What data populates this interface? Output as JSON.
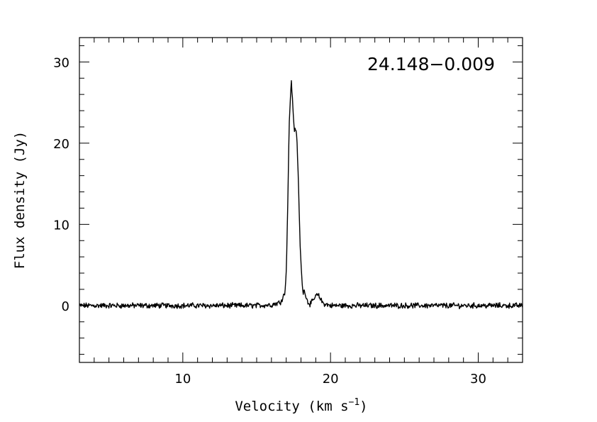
{
  "chart_data": {
    "type": "line",
    "annotation": "24.148−0.009",
    "xlabel_main": "Velocity (km s",
    "xlabel_sup": "−1",
    "xlabel_end": ")",
    "ylabel": "Flux density (Jy)",
    "xlim": [
      3,
      33
    ],
    "ylim": [
      -7,
      33
    ],
    "x_major_ticks": [
      10,
      20,
      30
    ],
    "x_tick_labels": [
      "10",
      "20",
      "30"
    ],
    "x_minor_step": 1,
    "y_major_ticks": [
      0,
      10,
      20,
      30
    ],
    "y_tick_labels": [
      "0",
      "10",
      "20",
      "30"
    ],
    "y_minor_step": 2,
    "grid": false,
    "series": [
      {
        "name": "",
        "line_color": "#000000",
        "x": [
          3.0,
          4.0,
          5.0,
          6.0,
          7.0,
          8.0,
          9.0,
          10.0,
          11.0,
          12.0,
          13.0,
          14.0,
          15.0,
          16.0,
          16.6,
          16.9,
          17.0,
          17.1,
          17.2,
          17.3,
          17.35,
          17.45,
          17.55,
          17.65,
          17.75,
          17.85,
          17.95,
          18.05,
          18.15,
          18.25,
          18.35,
          18.45,
          18.6,
          18.8,
          19.0,
          19.15,
          19.3,
          19.45,
          19.6,
          19.8,
          20.0,
          21.0,
          22.0,
          23.0,
          24.0,
          25.0,
          26.0,
          27.0,
          28.0,
          29.0,
          30.0,
          31.0,
          32.0,
          33.0
        ],
        "y": [
          0.0,
          0.0,
          0.0,
          0.0,
          0.0,
          0.0,
          0.0,
          0.0,
          0.0,
          0.0,
          0.0,
          0.0,
          0.0,
          0.1,
          0.4,
          1.5,
          4.0,
          12.0,
          22.0,
          26.5,
          27.5,
          24.5,
          21.5,
          22.0,
          19.5,
          13.5,
          7.0,
          3.5,
          1.5,
          2.0,
          1.0,
          0.5,
          0.2,
          0.5,
          1.2,
          1.3,
          0.9,
          0.4,
          0.2,
          0.1,
          0.0,
          0.0,
          0.0,
          0.0,
          0.0,
          0.0,
          0.0,
          0.0,
          0.0,
          0.0,
          0.0,
          0.0,
          0.0,
          0.0
        ]
      }
    ]
  }
}
